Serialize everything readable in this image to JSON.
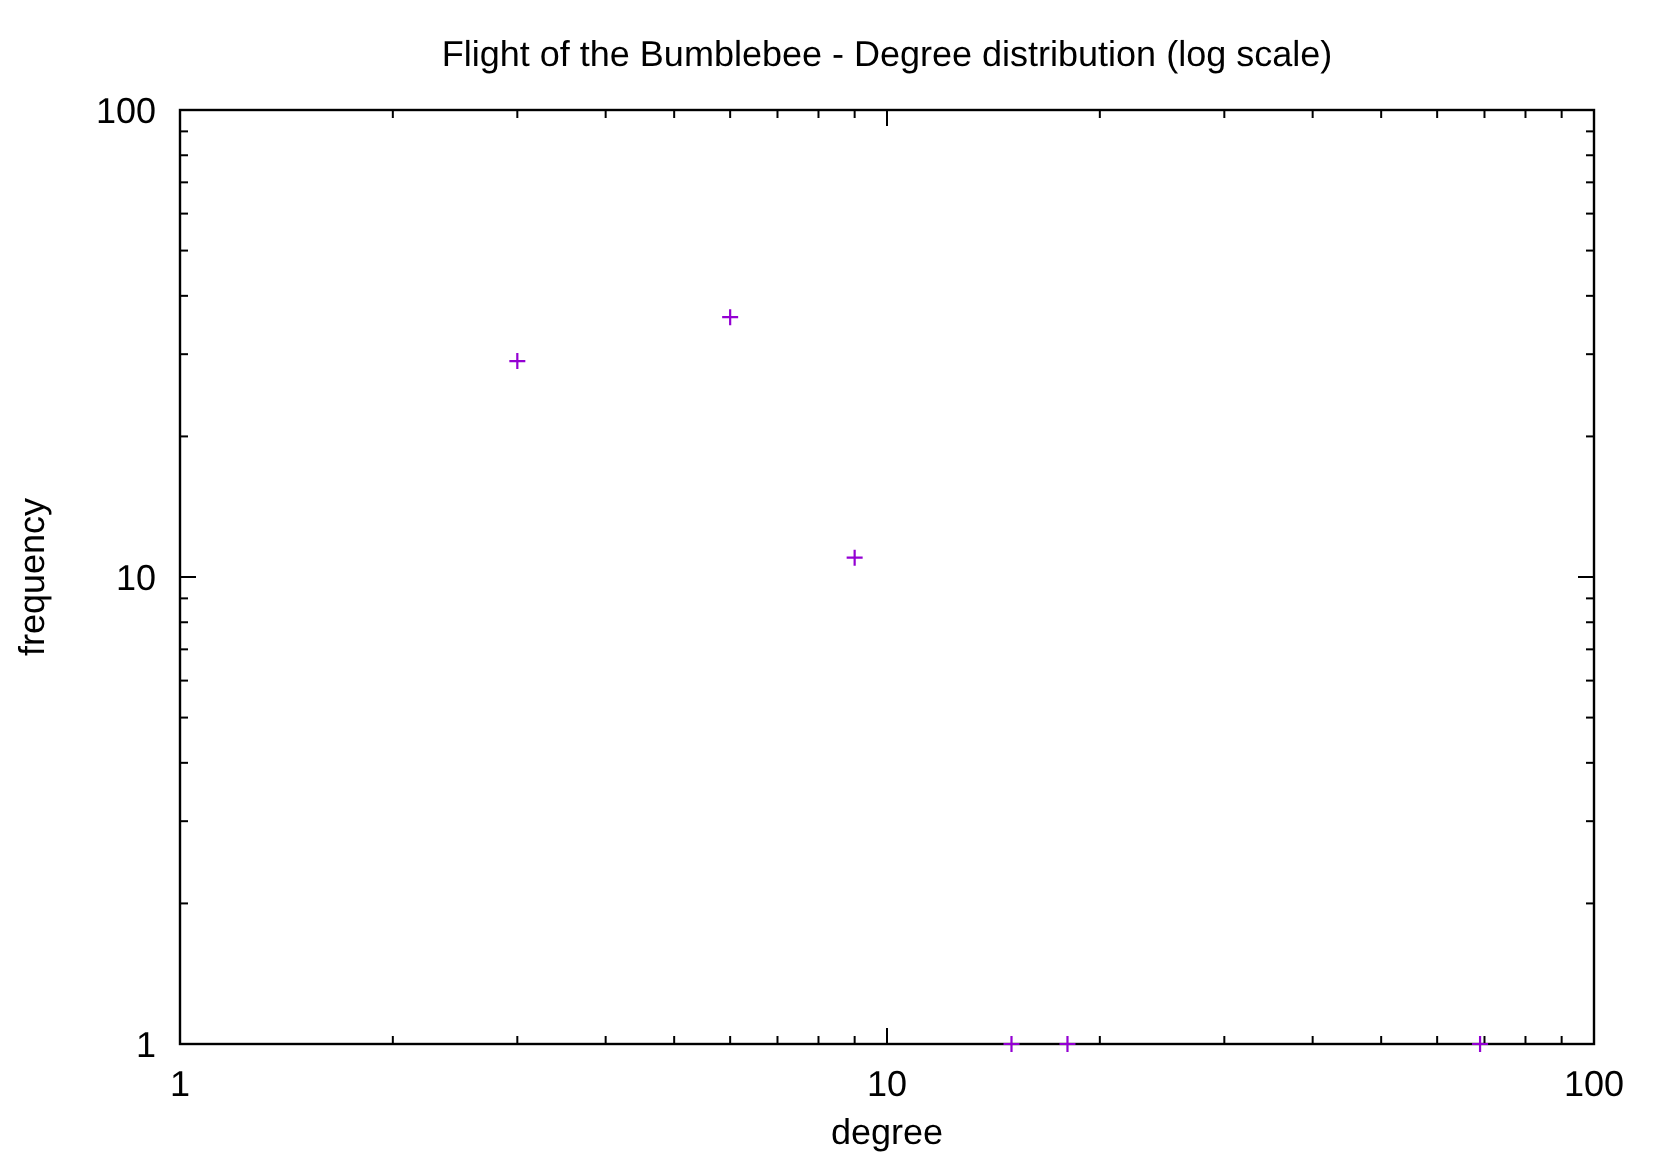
{
  "chart_data": {
    "type": "scatter",
    "title": "Flight of the Bumblebee - Degree distribution (log scale)",
    "xlabel": "degree",
    "ylabel": "frequency",
    "x": [
      3,
      6,
      9,
      15,
      18,
      69
    ],
    "series": [
      {
        "color": "#9400d3",
        "values": [
          29,
          36,
          11,
          1,
          1,
          1
        ]
      }
    ],
    "log": "xy",
    "xlim": [
      1,
      100
    ],
    "ylim": [
      1,
      100
    ],
    "xticks": [
      1,
      {
        "value": 2,
        "label": null
      },
      {
        "value": 3,
        "label": null
      },
      {
        "value": 4,
        "label": null
      },
      {
        "value": 5,
        "label": null
      },
      {
        "value": 6,
        "label": null
      },
      {
        "value": 7,
        "label": null
      },
      {
        "value": 8,
        "label": null
      },
      {
        "value": 9,
        "label": null
      },
      10,
      {
        "value": 20,
        "label": null
      },
      {
        "value": 30,
        "label": null
      },
      {
        "value": 40,
        "label": null
      },
      {
        "value": 50,
        "label": null
      },
      {
        "value": 60,
        "label": null
      },
      {
        "value": 70,
        "label": null
      },
      {
        "value": 80,
        "label": null
      },
      {
        "value": 90,
        "label": null
      },
      100
    ],
    "yticks": [
      1,
      {
        "value": 2,
        "label": null
      },
      {
        "value": 3,
        "label": null
      },
      {
        "value": 4,
        "label": null
      },
      {
        "value": 5,
        "label": null
      },
      {
        "value": 6,
        "label": null
      },
      {
        "value": 7,
        "label": null
      },
      {
        "value": 8,
        "label": null
      },
      {
        "value": 9,
        "label": null
      },
      10,
      {
        "value": 20,
        "label": null
      },
      {
        "value": 30,
        "label": null
      },
      {
        "value": 40,
        "label": null
      },
      {
        "value": 50,
        "label": null
      },
      {
        "value": 60,
        "label": null
      },
      {
        "value": 70,
        "label": null
      },
      {
        "value": 80,
        "label": null
      },
      {
        "value": 90,
        "label": null
      },
      100
    ],
    "marker": "cross"
  }
}
